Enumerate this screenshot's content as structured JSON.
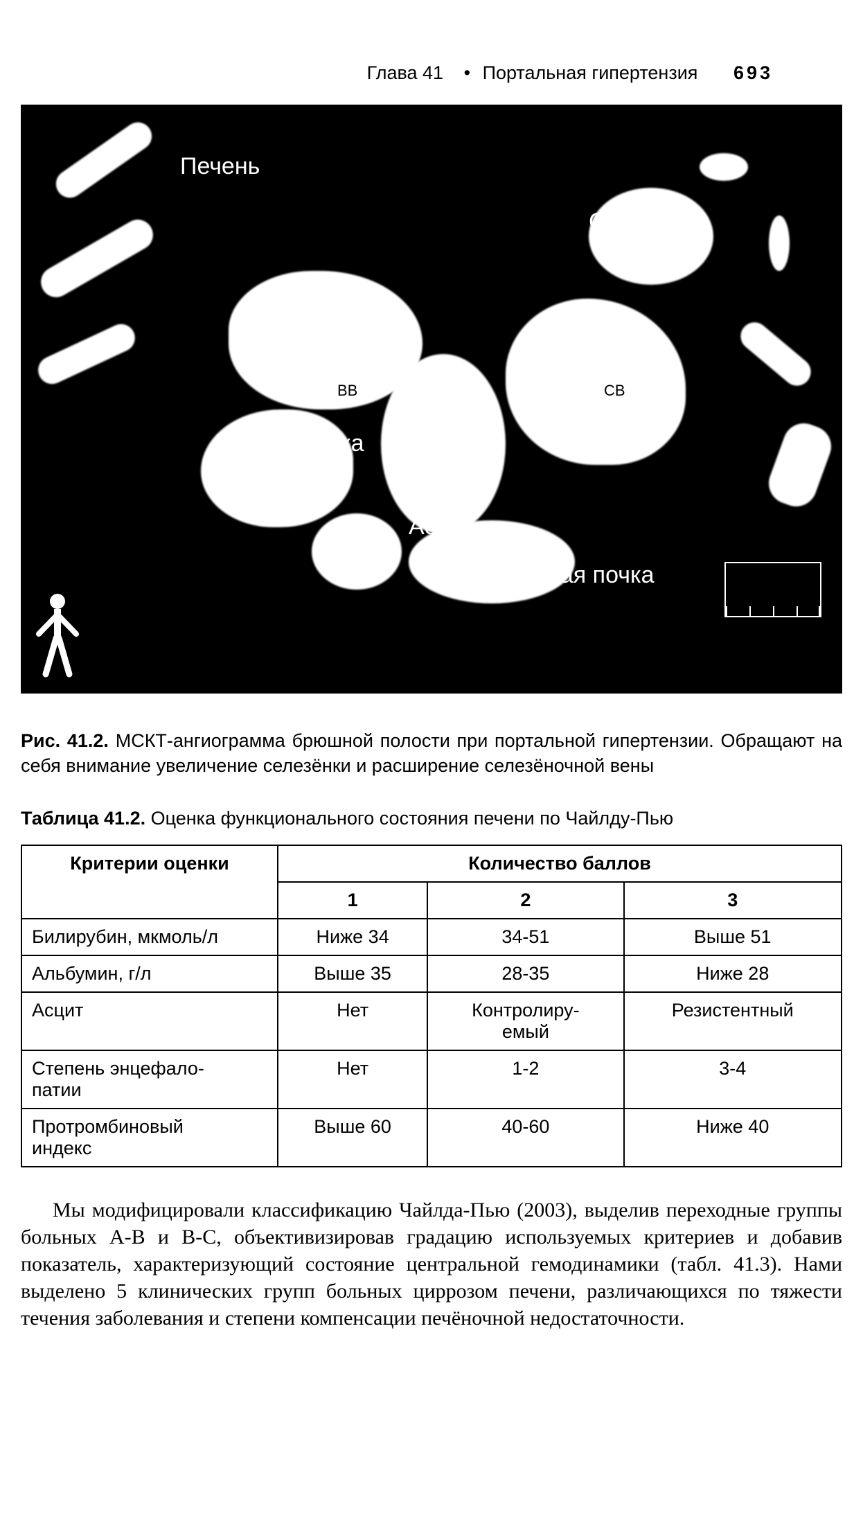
{
  "header": {
    "chapter": "Глава 41",
    "separator": "•",
    "title": "Портальная гипертензия",
    "page": "693"
  },
  "figure": {
    "labels": {
      "liver": "Печень",
      "spleen": "Селезенка",
      "right_kidney": "Правая почка",
      "aorta": "Аорта",
      "left_kidney": "Левая почка",
      "vv": "ВВ",
      "sv": "СВ"
    },
    "colors": {
      "background": "#000000",
      "foreground": "#ffffff"
    }
  },
  "caption": {
    "prefix": "Рис. 41.2.",
    "text": " МСКТ-ангиограмма брюшной полости при портальной гипертензии. Обращают на себя внимание увеличение селезёнки и расширение селезёночной вены"
  },
  "table": {
    "title_prefix": "Таблица 41.2.",
    "title_text": " Оценка функционального состояния печени по Чайлду-Пью",
    "header_criteria": "Критерии оценки",
    "header_scores": "Количество баллов",
    "score_cols": [
      "1",
      "2",
      "3"
    ],
    "rows": [
      {
        "label": "Билирубин, мкмоль/л",
        "c1": "Ниже 34",
        "c2": "34-51",
        "c3": "Выше 51"
      },
      {
        "label": "Альбумин, г/л",
        "c1": "Выше 35",
        "c2": "28-35",
        "c3": "Ниже 28"
      },
      {
        "label": "Асцит",
        "c1": "Нет",
        "c2": "Контролиру-\nемый",
        "c3": "Резистентный"
      },
      {
        "label": "Степень энцефало-\nпатии",
        "c1": "Нет",
        "c2": "1-2",
        "c3": "3-4"
      },
      {
        "label": "Протромбиновый\nиндекс",
        "c1": "Выше 60",
        "c2": "40-60",
        "c3": "Ниже 40"
      }
    ]
  },
  "paragraph": "Мы модифицировали классификацию Чайлда-Пью (2003), выделив переходные группы больных А-В и В-С, объективизировав градацию используемых критериев и добавив показатель, характеризующий состояние центральной гемодинамики (табл. 41.3). Нами выделено 5 клинических групп больных циррозом печени, различающихся по тяжести течения заболевания и степени компенсации печёночной недостаточности."
}
